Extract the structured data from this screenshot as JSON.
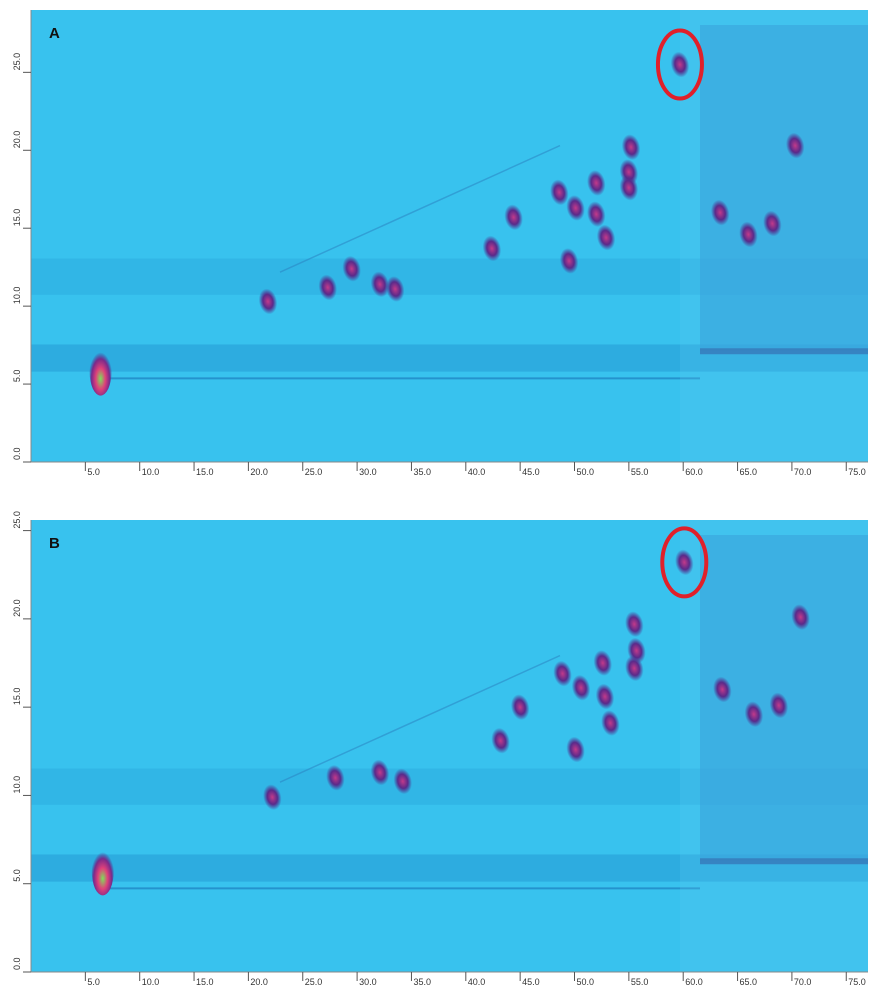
{
  "chart_data": [
    {
      "type": "contour",
      "title": "A",
      "x": [
        6.4,
        33.5,
        32.1,
        29.5,
        27.3,
        21.8,
        42.4,
        44.4,
        48.6,
        49.5,
        50.1,
        52.0,
        52.0,
        55.2,
        55.0,
        55.0,
        52.9,
        59.7,
        68.2,
        70.3,
        66.0,
        63.4
      ],
      "y": [
        5.8,
        11.1,
        11.4,
        12.4,
        11.2,
        10.3,
        13.7,
        15.7,
        17.3,
        12.9,
        16.3,
        17.9,
        15.9,
        20.2,
        18.6,
        17.6,
        14.4,
        25.5,
        15.3,
        20.3,
        14.6,
        16.0
      ],
      "color": "#4b2a8a",
      "xlim": [
        0,
        77
      ],
      "ylim": [
        0,
        29
      ],
      "xticks": [
        {
          "value": 5,
          "label": "5.0"
        },
        {
          "value": 10,
          "label": "10.0"
        },
        {
          "value": 15,
          "label": "15.0"
        },
        {
          "value": 20,
          "label": "20.0"
        },
        {
          "value": 25,
          "label": "25.0"
        },
        {
          "value": 30,
          "label": "30.0"
        },
        {
          "value": 35,
          "label": "35.0"
        },
        {
          "value": 40,
          "label": "40.0"
        },
        {
          "value": 45,
          "label": "45.0"
        },
        {
          "value": 50,
          "label": "50.0"
        },
        {
          "value": 55,
          "label": "55.0"
        },
        {
          "value": 60,
          "label": "60.0"
        },
        {
          "value": 65,
          "label": "65.0"
        },
        {
          "value": 70,
          "label": "70.0"
        },
        {
          "value": 75,
          "label": "75.0"
        }
      ],
      "yticks": [
        {
          "value": 0,
          "label": "0.0"
        },
        {
          "value": 5,
          "label": "5.0"
        },
        {
          "value": 10,
          "label": "10.0"
        },
        {
          "value": 15,
          "label": "15.0"
        },
        {
          "value": 20,
          "label": "20.0"
        },
        {
          "value": 25,
          "label": "25.0"
        }
      ]
    },
    {
      "type": "contour",
      "title": "B",
      "x": [
        6.6,
        34.2,
        32.1,
        28.0,
        22.2,
        43.2,
        45.0,
        48.9,
        50.1,
        50.6,
        52.6,
        52.8,
        55.5,
        55.7,
        55.5,
        53.3,
        60.1,
        68.8,
        70.8,
        66.5,
        63.6
      ],
      "y": [
        5.7,
        10.8,
        11.3,
        11.0,
        9.9,
        13.1,
        15.0,
        16.9,
        12.6,
        16.1,
        17.5,
        15.6,
        19.7,
        18.2,
        17.2,
        14.1,
        23.2,
        15.1,
        20.1,
        14.6,
        16.0
      ],
      "color": "#4b2a8a",
      "xlim": [
        0,
        77
      ],
      "ylim": [
        0,
        25.6
      ],
      "xticks": [
        {
          "value": 5,
          "label": "5.0"
        },
        {
          "value": 10,
          "label": "10.0"
        },
        {
          "value": 15,
          "label": "15.0"
        },
        {
          "value": 20,
          "label": "20.0"
        },
        {
          "value": 25,
          "label": "25.0"
        },
        {
          "value": 30,
          "label": "30.0"
        },
        {
          "value": 35,
          "label": "35.0"
        },
        {
          "value": 40,
          "label": "40.0"
        },
        {
          "value": 45,
          "label": "45.0"
        },
        {
          "value": 50,
          "label": "50.0"
        },
        {
          "value": 55,
          "label": "55.0"
        },
        {
          "value": 60,
          "label": "60.0"
        },
        {
          "value": 65,
          "label": "65.0"
        },
        {
          "value": 70,
          "label": "70.0"
        },
        {
          "value": 75,
          "label": "75.0"
        }
      ],
      "yticks": [
        {
          "value": 0,
          "label": "0.0"
        },
        {
          "value": 5,
          "label": "5.0"
        },
        {
          "value": 10,
          "label": "10.0"
        },
        {
          "value": 15,
          "label": "15.0"
        },
        {
          "value": 20,
          "label": "20.0"
        },
        {
          "value": 25,
          "label": "25.0"
        }
      ]
    }
  ]
}
